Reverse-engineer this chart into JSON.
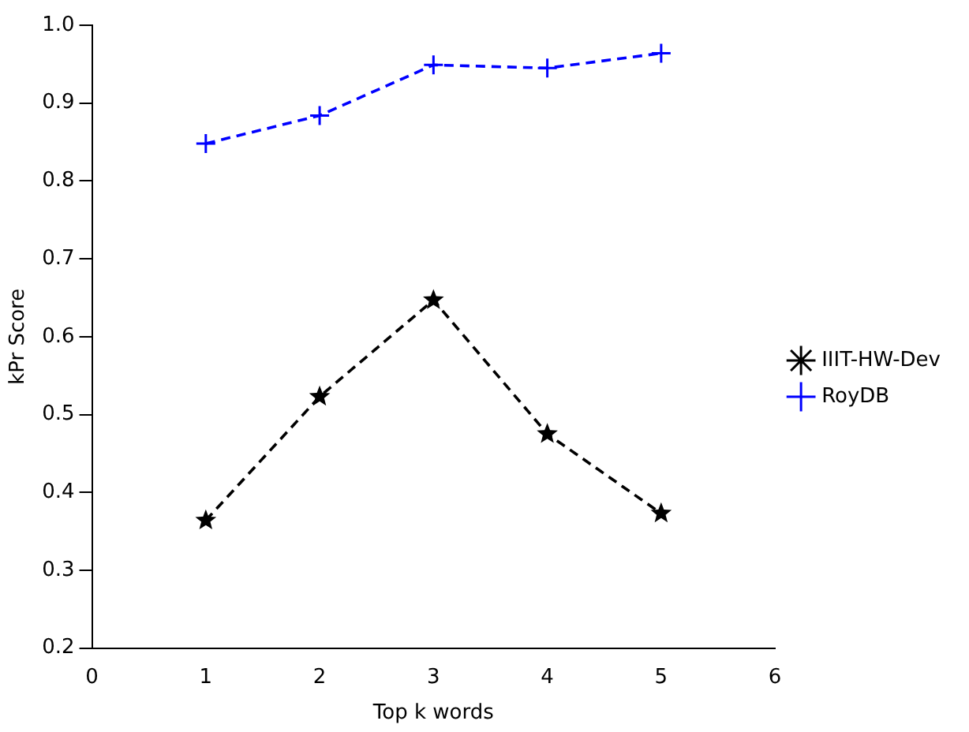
{
  "chart_data": {
    "type": "line",
    "xlabel": "Top k words",
    "ylabel": "kPr Score",
    "x": [
      1,
      2,
      3,
      4,
      5
    ],
    "xlim": [
      0,
      6
    ],
    "xticks": [
      0,
      1,
      2,
      3,
      4,
      5,
      6
    ],
    "ylim": [
      0.2,
      1.0
    ],
    "yticks": [
      0.2,
      0.3,
      0.4,
      0.5,
      0.6,
      0.7,
      0.8,
      0.9,
      {
        "value": 1.0,
        "label": "1.0"
      }
    ],
    "series": [
      {
        "name": "IIIT-HW-Dev",
        "color": "#000000",
        "values": [
          0.364,
          0.523,
          0.647,
          0.475,
          0.373
        ],
        "marker": "star",
        "line_style": "dashed"
      },
      {
        "name": "RoyDB",
        "color": "#0000ff",
        "values": [
          0.848,
          0.884,
          0.949,
          0.945,
          0.964
        ],
        "marker": "cross",
        "line_style": "dashed"
      }
    ],
    "grid": false,
    "legend": "right"
  }
}
